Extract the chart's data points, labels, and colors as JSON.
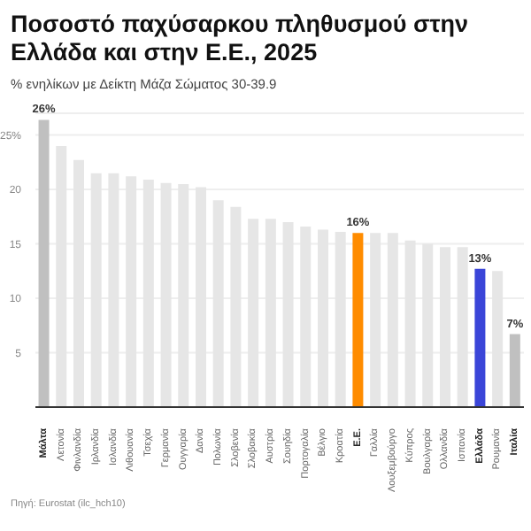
{
  "chart_data": {
    "type": "bar",
    "title": "Ποσοστό παχύσαρκου πληθυσμού στην Ελλάδα και στην Ε.Ε., 2025",
    "subtitle": "% ενηλίκων με Δείκτη Μάζα Σώματος 30-39.9",
    "categories": [
      "Μάλτα",
      "Λετονία",
      "Φινλανδία",
      "Ιρλανδία",
      "Ισλανδία",
      "Λιθουανία",
      "Τσεχία",
      "Γερμανία",
      "Ουγγαρία",
      "Δανία",
      "Πολωνία",
      "Σλοβενία",
      "Σλοβακία",
      "Αυστρία",
      "Σουηδία",
      "Πορτογαλία",
      "Βέλγιο",
      "Κροατία",
      "Ε.Ε.",
      "Γαλλία",
      "Λουξεμβούργο",
      "Κύπρος",
      "Βουλγαρία",
      "Ολλανδία",
      "Ισπανία",
      "Ελλάδα",
      "Ρουμανία",
      "Ιταλία"
    ],
    "values": [
      26.4,
      24.0,
      22.7,
      21.5,
      21.5,
      21.2,
      20.9,
      20.6,
      20.5,
      20.2,
      19.0,
      18.4,
      17.3,
      17.3,
      17.0,
      16.6,
      16.3,
      16.1,
      16.0,
      16.0,
      16.0,
      15.3,
      15.0,
      14.7,
      14.7,
      12.7,
      12.5,
      6.7
    ],
    "colors": [
      "#c0c0c0",
      "#e6e6e6",
      "#e6e6e6",
      "#e6e6e6",
      "#e6e6e6",
      "#e6e6e6",
      "#e6e6e6",
      "#e6e6e6",
      "#e6e6e6",
      "#e6e6e6",
      "#e6e6e6",
      "#e6e6e6",
      "#e6e6e6",
      "#e6e6e6",
      "#e6e6e6",
      "#e6e6e6",
      "#e6e6e6",
      "#e6e6e6",
      "#ff8c00",
      "#e6e6e6",
      "#e6e6e6",
      "#e6e6e6",
      "#e6e6e6",
      "#e6e6e6",
      "#e6e6e6",
      "#3a45d8",
      "#e6e6e6",
      "#c0c0c0"
    ],
    "value_labels": [
      "26%",
      null,
      null,
      null,
      null,
      null,
      null,
      null,
      null,
      null,
      null,
      null,
      null,
      null,
      null,
      null,
      null,
      null,
      "16%",
      null,
      null,
      null,
      null,
      null,
      null,
      "13%",
      null,
      "7%"
    ],
    "ylim": [
      0,
      27
    ],
    "yticks": [
      {
        "value": 0,
        "label": null
      },
      5,
      10,
      15,
      20,
      {
        "value": 25,
        "label": "25%"
      }
    ],
    "grid": "y",
    "legend": false,
    "annotations": [
      "Πηγή: Eurostat (ilc_hch10)"
    ]
  }
}
